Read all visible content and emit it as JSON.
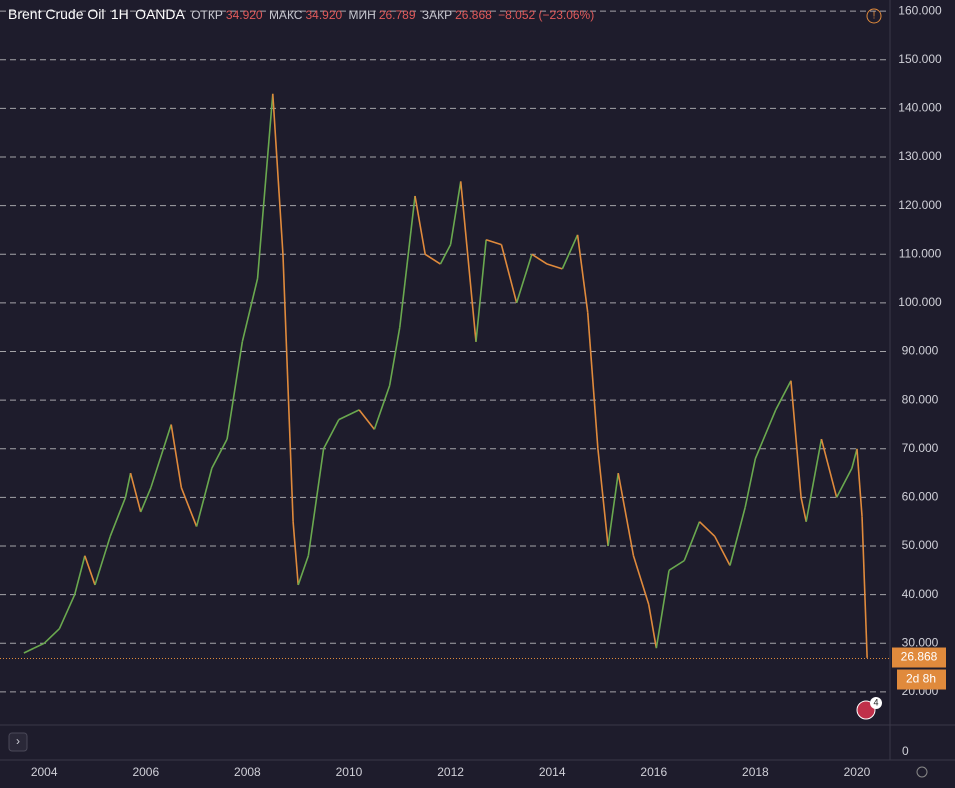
{
  "header": {
    "symbol": "Brent Crude Oil",
    "interval": "1H",
    "source": "OANDA",
    "open_label": "ОТКР",
    "open": "34.920",
    "high_label": "МАКС",
    "high": "34.920",
    "low_label": "МИН",
    "low": "26.789",
    "close_label": "ЗАКР",
    "close": "26.868",
    "change": "−8.052 (−23.06%)"
  },
  "chart_data": {
    "type": "line",
    "x": [
      2003.6,
      2003.8,
      2004.0,
      2004.3,
      2004.6,
      2004.8,
      2005.0,
      2005.3,
      2005.6,
      2005.7,
      2005.9,
      2006.1,
      2006.5,
      2006.7,
      2007.0,
      2007.3,
      2007.6,
      2007.9,
      2008.2,
      2008.5,
      2008.7,
      2008.9,
      2009.0,
      2009.2,
      2009.5,
      2009.8,
      2010.2,
      2010.5,
      2010.8,
      2011.0,
      2011.3,
      2011.5,
      2011.8,
      2012.0,
      2012.2,
      2012.5,
      2012.7,
      2013.0,
      2013.3,
      2013.6,
      2013.9,
      2014.2,
      2014.5,
      2014.7,
      2014.9,
      2015.1,
      2015.3,
      2015.6,
      2015.9,
      2016.05,
      2016.3,
      2016.6,
      2016.9,
      2017.2,
      2017.5,
      2017.8,
      2018.0,
      2018.4,
      2018.7,
      2018.9,
      2019.0,
      2019.3,
      2019.6,
      2019.9,
      2020.0,
      2020.1,
      2020.2
    ],
    "values": [
      28,
      29,
      30,
      33,
      40,
      48,
      42,
      52,
      60,
      65,
      57,
      62,
      75,
      62,
      54,
      66,
      72,
      92,
      105,
      143,
      110,
      55,
      42,
      48,
      70,
      76,
      78,
      74,
      83,
      95,
      122,
      110,
      108,
      112,
      125,
      92,
      113,
      112,
      100,
      110,
      108,
      107,
      114,
      98,
      70,
      50,
      65,
      48,
      38,
      29,
      45,
      47,
      55,
      52,
      46,
      58,
      68,
      78,
      84,
      60,
      55,
      72,
      60,
      66,
      70,
      56,
      27
    ],
    "up_color": "#6aa84f",
    "down_color": "#e08a3c",
    "xlim": [
      2003.13,
      2020.65
    ],
    "xticks": [
      2004,
      2006,
      2008,
      2010,
      2012,
      2014,
      2016,
      2018,
      2020
    ],
    "ylim": [
      13.4,
      162.3
    ],
    "yticks": [
      {
        "value": 20,
        "label": "20.000"
      },
      {
        "value": 30,
        "label": "30.000"
      },
      {
        "value": 40,
        "label": "40.000"
      },
      {
        "value": 50,
        "label": "50.000"
      },
      {
        "value": 60,
        "label": "60.000"
      },
      {
        "value": 70,
        "label": "70.000"
      },
      {
        "value": 80,
        "label": "80.000"
      },
      {
        "value": 90,
        "label": "90.000"
      },
      {
        "value": 100,
        "label": "100.000"
      },
      {
        "value": 110,
        "label": "110.000"
      },
      {
        "value": 120,
        "label": "120.000"
      },
      {
        "value": 130,
        "label": "130.000"
      },
      {
        "value": 140,
        "label": "140.000"
      },
      {
        "value": 150,
        "label": "150.000"
      },
      {
        "value": 160,
        "label": "160.000"
      }
    ],
    "grid": true,
    "last_price": 26.868,
    "countdown": "2d 8h",
    "volume_yticks": [
      0
    ],
    "events_badge": "4"
  }
}
